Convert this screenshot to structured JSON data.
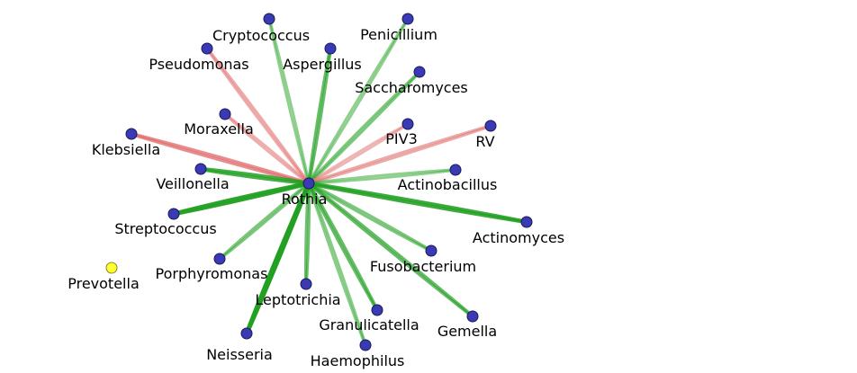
{
  "colors": {
    "node_fill": "#3a3ab4",
    "node_stroke": "#1a1a5a",
    "isolated_node_fill": "#ffff33",
    "isolated_node_stroke": "#8a8a20",
    "positive_edge": "#22a022",
    "negative_edge": "#e06b6b"
  },
  "network": {
    "hub": "Rothia",
    "nodes": [
      {
        "id": "Rothia",
        "label": "Rothia",
        "type": "hub"
      },
      {
        "id": "Cryptococcus",
        "label": "Cryptococcus",
        "type": "taxon"
      },
      {
        "id": "Penicillium",
        "label": "Penicillium",
        "type": "taxon"
      },
      {
        "id": "Pseudomonas",
        "label": "Pseudomonas",
        "type": "taxon"
      },
      {
        "id": "Aspergillus",
        "label": "Aspergillus",
        "type": "taxon"
      },
      {
        "id": "Saccharomyces",
        "label": "Saccharomyces",
        "type": "taxon"
      },
      {
        "id": "Moraxella",
        "label": "Moraxella",
        "type": "taxon"
      },
      {
        "id": "PIV3",
        "label": "PIV3",
        "type": "taxon"
      },
      {
        "id": "RV",
        "label": "RV",
        "type": "taxon"
      },
      {
        "id": "Klebsiella",
        "label": "Klebsiella",
        "type": "taxon"
      },
      {
        "id": "Veillonella",
        "label": "Veillonella",
        "type": "taxon"
      },
      {
        "id": "Actinobacillus",
        "label": "Actinobacillus",
        "type": "taxon"
      },
      {
        "id": "Streptococcus",
        "label": "Streptococcus",
        "type": "taxon"
      },
      {
        "id": "Actinomyces",
        "label": "Actinomyces",
        "type": "taxon"
      },
      {
        "id": "Prevotella",
        "label": "Prevotella",
        "type": "isolated"
      },
      {
        "id": "Porphyromonas",
        "label": "Porphyromonas",
        "type": "taxon"
      },
      {
        "id": "Fusobacterium",
        "label": "Fusobacterium",
        "type": "taxon"
      },
      {
        "id": "Leptotrichia",
        "label": "Leptotrichia",
        "type": "taxon"
      },
      {
        "id": "Granulicatella",
        "label": "Granulicatella",
        "type": "taxon"
      },
      {
        "id": "Gemella",
        "label": "Gemella",
        "type": "taxon"
      },
      {
        "id": "Neisseria",
        "label": "Neisseria",
        "type": "taxon"
      },
      {
        "id": "Haemophilus",
        "label": "Haemophilus",
        "type": "taxon"
      }
    ],
    "edges": [
      {
        "target": "Cryptococcus",
        "sign": "positive",
        "strength": 0.35
      },
      {
        "target": "Penicillium",
        "sign": "positive",
        "strength": 0.35
      },
      {
        "target": "Pseudomonas",
        "sign": "negative",
        "strength": 0.45
      },
      {
        "target": "Aspergillus",
        "sign": "positive",
        "strength": 0.6
      },
      {
        "target": "Saccharomyces",
        "sign": "positive",
        "strength": 0.45
      },
      {
        "target": "Moraxella",
        "sign": "negative",
        "strength": 0.4
      },
      {
        "target": "PIV3",
        "sign": "negative",
        "strength": 0.35
      },
      {
        "target": "RV",
        "sign": "negative",
        "strength": 0.45
      },
      {
        "target": "Klebsiella",
        "sign": "negative",
        "strength": 0.7
      },
      {
        "target": "Veillonella",
        "sign": "positive",
        "strength": 0.8
      },
      {
        "target": "Actinobacillus",
        "sign": "positive",
        "strength": 0.35
      },
      {
        "target": "Streptococcus",
        "sign": "positive",
        "strength": 0.95
      },
      {
        "target": "Actinomyces",
        "sign": "positive",
        "strength": 0.85
      },
      {
        "target": "Porphyromonas",
        "sign": "positive",
        "strength": 0.45
      },
      {
        "target": "Fusobacterium",
        "sign": "positive",
        "strength": 0.45
      },
      {
        "target": "Leptotrichia",
        "sign": "positive",
        "strength": 0.55
      },
      {
        "target": "Granulicatella",
        "sign": "positive",
        "strength": 0.6
      },
      {
        "target": "Gemella",
        "sign": "positive",
        "strength": 0.6
      },
      {
        "target": "Neisseria",
        "sign": "positive",
        "strength": 1.0
      },
      {
        "target": "Haemophilus",
        "sign": "positive",
        "strength": 0.4
      }
    ]
  }
}
